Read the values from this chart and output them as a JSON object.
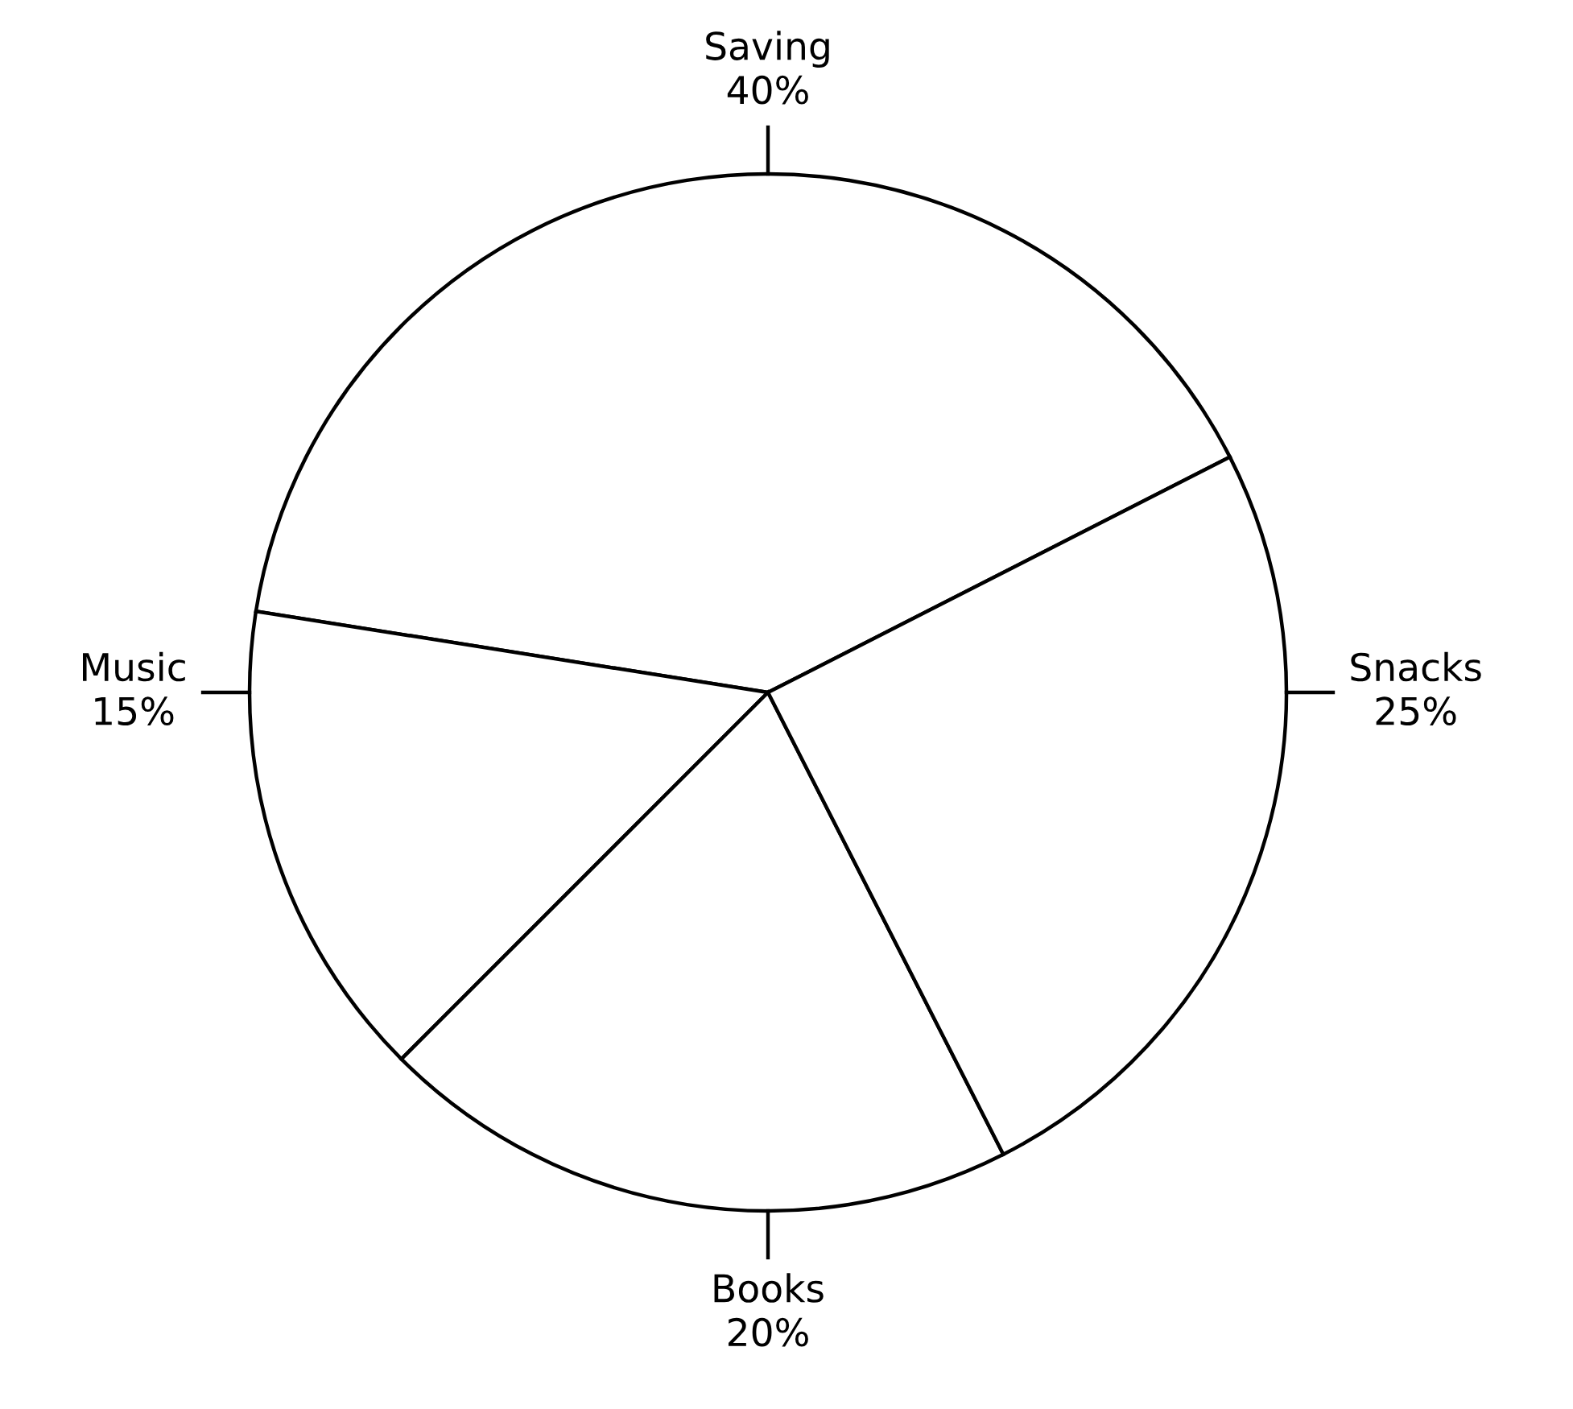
{
  "chart_data": {
    "type": "pie",
    "categories": [
      "Saving",
      "Music",
      "Books",
      "Snacks"
    ],
    "values": [
      40,
      15,
      20,
      25
    ],
    "value_labels": [
      "40%",
      "15%",
      "20%",
      "25%"
    ],
    "colors": [
      "#ffffff",
      "#ffffff",
      "#ffffff",
      "#ffffff"
    ],
    "legend": false
  }
}
